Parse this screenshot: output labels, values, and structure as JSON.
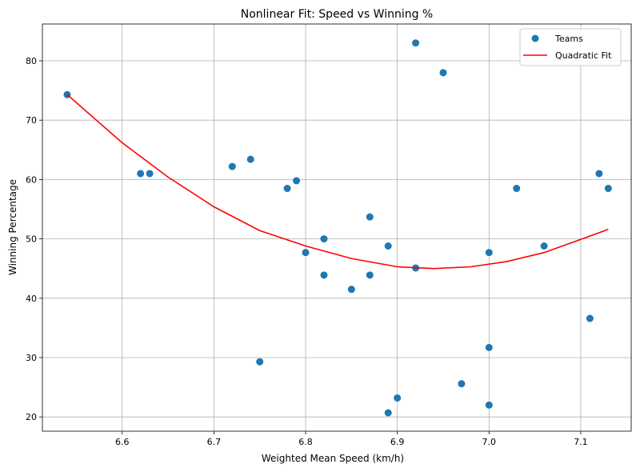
{
  "chart_data": {
    "type": "scatter",
    "title": "Nonlinear Fit: Speed vs Winning %",
    "xlabel": "Weighted Mean Speed (km/h)",
    "ylabel": "Winning Percentage",
    "xlim": [
      6.513,
      7.155
    ],
    "ylim": [
      17.6,
      86.2
    ],
    "xticks": [
      "6.6",
      "6.7",
      "6.8",
      "6.9",
      "7.0",
      "7.1"
    ],
    "yticks": [
      "20",
      "30",
      "40",
      "50",
      "60",
      "70",
      "80"
    ],
    "grid": true,
    "legend_position": "top-right",
    "series": [
      {
        "name": "Teams",
        "kind": "scatter",
        "color": "#1f77b4",
        "points": [
          [
            6.54,
            74.3
          ],
          [
            6.62,
            61.0
          ],
          [
            6.63,
            61.0
          ],
          [
            6.72,
            62.2
          ],
          [
            6.74,
            63.4
          ],
          [
            6.75,
            29.3
          ],
          [
            6.78,
            58.5
          ],
          [
            6.79,
            59.8
          ],
          [
            6.8,
            47.7
          ],
          [
            6.82,
            50.0
          ],
          [
            6.82,
            43.9
          ],
          [
            6.85,
            41.5
          ],
          [
            6.87,
            53.7
          ],
          [
            6.87,
            43.9
          ],
          [
            6.89,
            48.8
          ],
          [
            6.89,
            20.7
          ],
          [
            6.9,
            23.2
          ],
          [
            6.92,
            83.0
          ],
          [
            6.92,
            45.1
          ],
          [
            6.95,
            78.0
          ],
          [
            6.97,
            25.6
          ],
          [
            7.0,
            47.7
          ],
          [
            7.0,
            31.7
          ],
          [
            7.0,
            22.0
          ],
          [
            7.03,
            58.5
          ],
          [
            7.06,
            48.8
          ],
          [
            7.11,
            36.6
          ],
          [
            7.12,
            61.0
          ],
          [
            7.13,
            58.5
          ]
        ]
      },
      {
        "name": "Quadratic Fit",
        "kind": "line",
        "color": "#ff0000",
        "x": [
          6.54,
          6.6,
          6.65,
          6.7,
          6.75,
          6.8,
          6.85,
          6.9,
          6.94,
          6.98,
          7.02,
          7.06,
          7.1,
          7.13
        ],
        "y": [
          74.3,
          66.2,
          60.4,
          55.4,
          51.4,
          48.8,
          46.7,
          45.3,
          45.0,
          45.3,
          46.2,
          47.7,
          49.9,
          51.6
        ]
      }
    ]
  }
}
